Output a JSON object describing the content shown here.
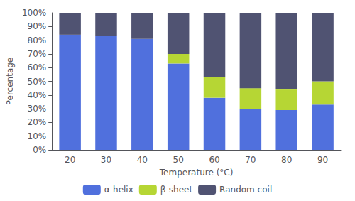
{
  "chart_data": {
    "type": "bar",
    "categories": [
      "20",
      "30",
      "40",
      "50",
      "60",
      "70",
      "80",
      "90"
    ],
    "series": [
      {
        "name": "α-helix",
        "values": [
          84,
          83,
          81,
          63,
          38,
          30,
          29,
          33
        ]
      },
      {
        "name": "β-sheet",
        "values": [
          0,
          0,
          0,
          7,
          15,
          15,
          15,
          17
        ]
      },
      {
        "name": "Random coil",
        "values": [
          16,
          17,
          19,
          30,
          47,
          55,
          56,
          50
        ]
      }
    ],
    "xlabel": "Temperature (°C)",
    "ylabel": "Percentage",
    "ylim": [
      0,
      100
    ],
    "yticks": [
      {
        "value": 0,
        "label": "0%"
      },
      {
        "value": 10,
        "label": "10%"
      },
      {
        "value": 20,
        "label": "20%"
      },
      {
        "value": 30,
        "label": "30%"
      },
      {
        "value": 40,
        "label": "40%"
      },
      {
        "value": 50,
        "label": "50%"
      },
      {
        "value": 60,
        "label": "60%"
      },
      {
        "value": 70,
        "label": "70%"
      },
      {
        "value": 80,
        "label": "80%"
      },
      {
        "value": 90,
        "label": "90%"
      },
      {
        "value": 100,
        "label": "100%"
      }
    ],
    "stacked": true,
    "grid": false,
    "legend": "bottom"
  }
}
